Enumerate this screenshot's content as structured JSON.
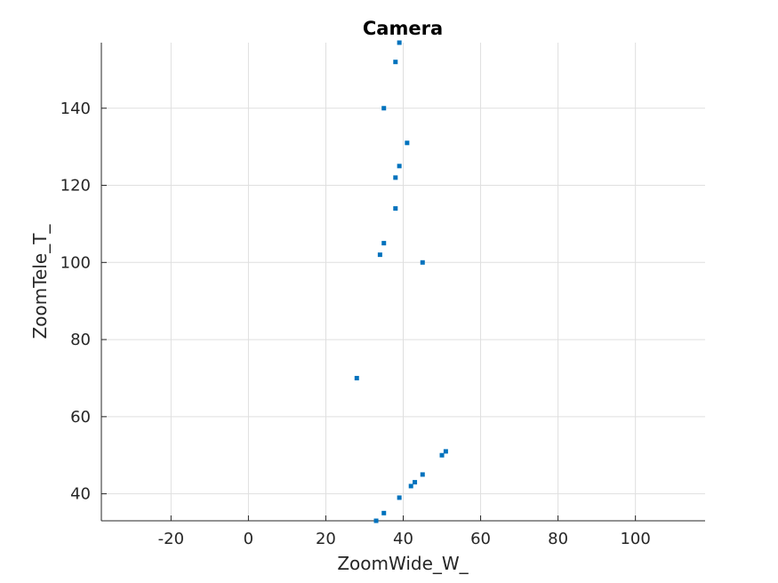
{
  "chart_data": {
    "type": "scatter",
    "title": "Camera",
    "xlabel": "ZoomWide_W_",
    "ylabel": "ZoomTele_T_",
    "xlim": [
      -38,
      118
    ],
    "ylim": [
      33,
      157
    ],
    "xticks": [
      -20,
      0,
      20,
      40,
      60,
      80,
      100
    ],
    "yticks": [
      40,
      60,
      80,
      100,
      120,
      140
    ],
    "grid": true,
    "marker_color": "#0072bd",
    "series": [
      {
        "points": [
          {
            "x": 39,
            "y": 157
          },
          {
            "x": 38,
            "y": 152
          },
          {
            "x": 35,
            "y": 140
          },
          {
            "x": 41,
            "y": 131
          },
          {
            "x": 39,
            "y": 125
          },
          {
            "x": 38,
            "y": 122
          },
          {
            "x": 38,
            "y": 114
          },
          {
            "x": 35,
            "y": 105
          },
          {
            "x": 34,
            "y": 102
          },
          {
            "x": 45,
            "y": 100
          },
          {
            "x": 28,
            "y": 70
          },
          {
            "x": 51,
            "y": 51
          },
          {
            "x": 50,
            "y": 50
          },
          {
            "x": 45,
            "y": 45
          },
          {
            "x": 43,
            "y": 43
          },
          {
            "x": 42,
            "y": 42
          },
          {
            "x": 39,
            "y": 39
          },
          {
            "x": 35,
            "y": 35
          },
          {
            "x": 33,
            "y": 33
          }
        ]
      }
    ]
  }
}
